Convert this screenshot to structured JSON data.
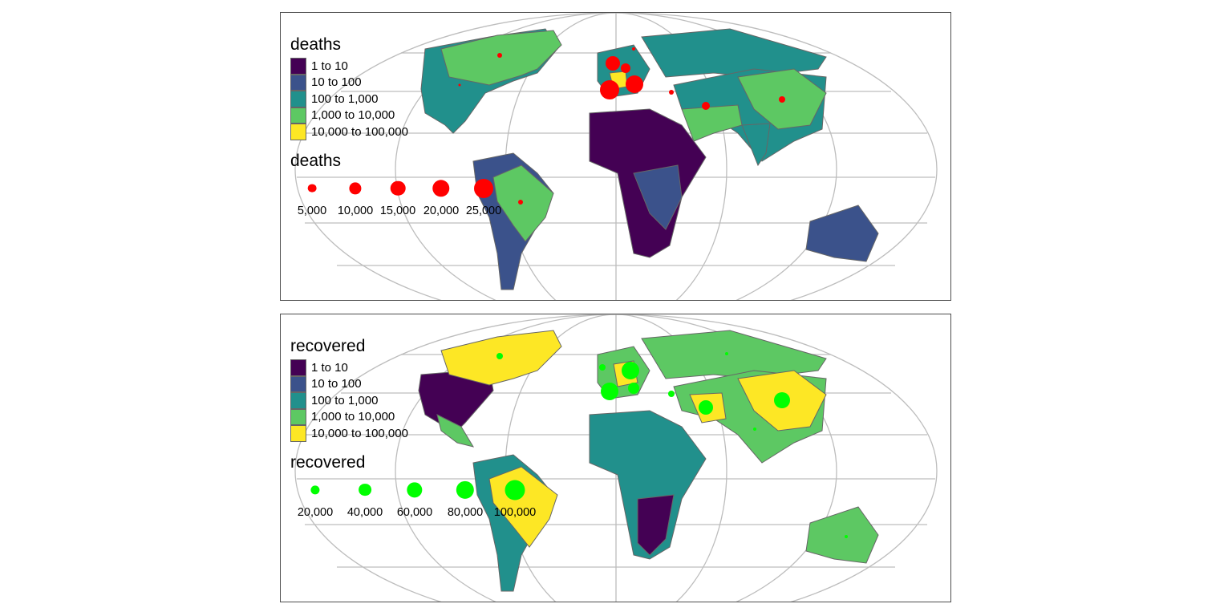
{
  "classes": [
    {
      "label": "1 to 10",
      "color": "#440154"
    },
    {
      "label": "10 to 100",
      "color": "#3b528b"
    },
    {
      "label": "100 to 1,000",
      "color": "#21908c"
    },
    {
      "label": "1,000 to 10,000",
      "color": "#5dc863"
    },
    {
      "label": "10,000 to 100,000",
      "color": "#fde725"
    }
  ],
  "panels": [
    {
      "fill_title": "deaths",
      "size_title": "deaths",
      "bubble_color": "#ff0000",
      "bubbles": [
        {
          "label": "5,000",
          "value": 5000
        },
        {
          "label": "10,000",
          "value": 10000
        },
        {
          "label": "15,000",
          "value": 15000
        },
        {
          "label": "20,000",
          "value": 20000
        },
        {
          "label": "25,000",
          "value": 25000
        }
      ]
    },
    {
      "fill_title": "recovered",
      "size_title": "recovered",
      "bubble_color": "#00ff00",
      "bubbles": [
        {
          "label": "20,000",
          "value": 20000
        },
        {
          "label": "40,000",
          "value": 40000
        },
        {
          "label": "60,000",
          "value": 60000
        },
        {
          "label": "80,000",
          "value": 80000
        },
        {
          "label": "100,000",
          "value": 100000
        }
      ]
    }
  ]
}
